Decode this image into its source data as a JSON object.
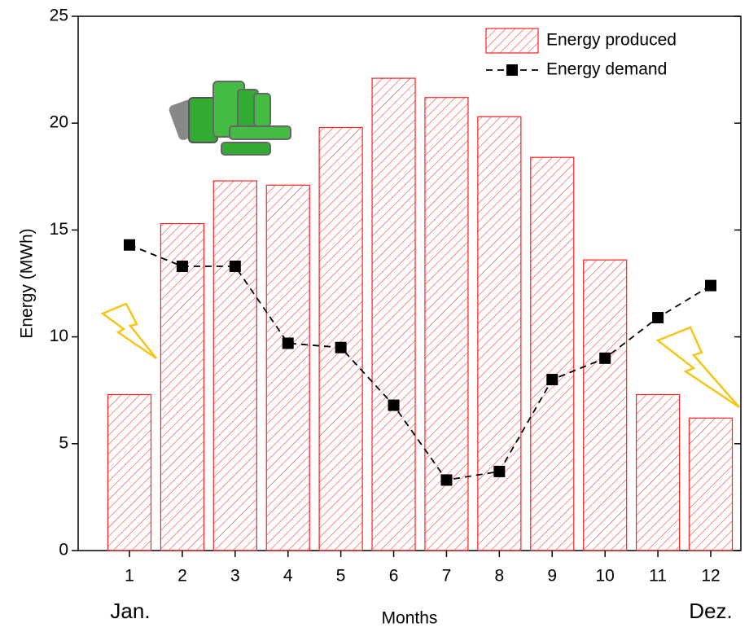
{
  "chart_data": {
    "type": "bar",
    "x_label": "Months",
    "y_label": "Energy (MWh)",
    "annotations": [
      "Jan.",
      "Dez."
    ],
    "categories": [
      "1",
      "2",
      "3",
      "4",
      "5",
      "6",
      "7",
      "8",
      "9",
      "10",
      "11",
      "12"
    ],
    "series": [
      {
        "name": "Energy produced",
        "type": "bar",
        "color": "#ff2020",
        "hatch": true,
        "values": [
          7.3,
          15.3,
          17.3,
          17.1,
          19.8,
          22.1,
          21.2,
          20.3,
          18.4,
          13.6,
          7.3,
          6.2
        ]
      },
      {
        "name": "Energy demand",
        "type": "line",
        "color": "#000000",
        "dashed": true,
        "values": [
          14.3,
          13.3,
          13.3,
          9.7,
          9.5,
          6.8,
          3.3,
          3.7,
          8.0,
          9.0,
          10.9,
          12.4
        ]
      }
    ],
    "ylim": [
      0,
      25
    ],
    "yticks": [
      0,
      5,
      10,
      15,
      20,
      25
    ],
    "legend": "upper right"
  }
}
